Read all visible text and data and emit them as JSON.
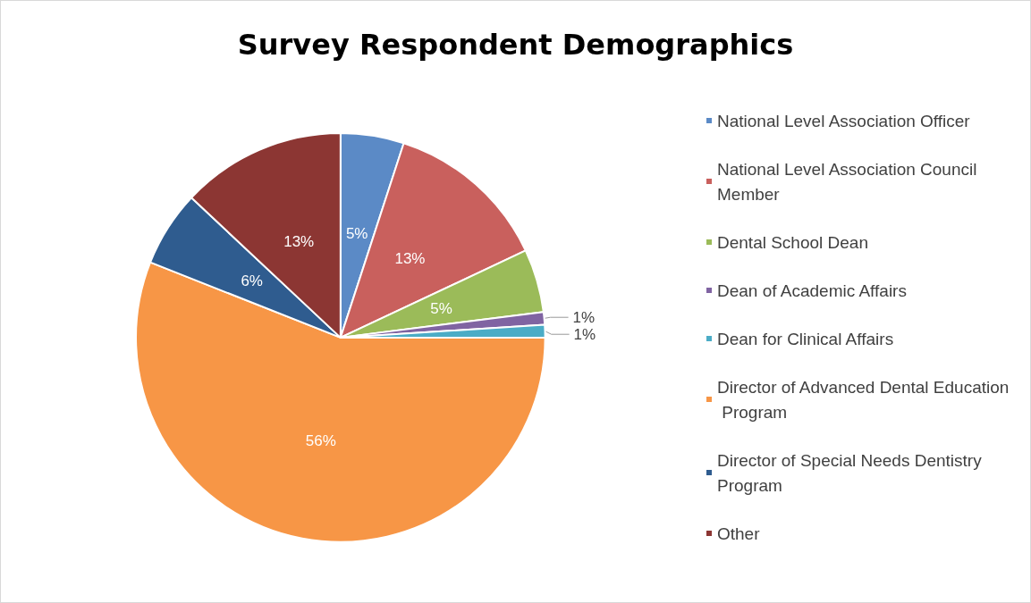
{
  "chart_data": {
    "type": "pie",
    "title": "Survey Respondent Demographics",
    "categories": [
      "National Level Association Officer",
      "National Level Association Council Member",
      "Dental School Dean",
      "Dean of Academic Affairs",
      "Dean for Clinical Affairs",
      "Director of Advanced Dental Education Program",
      "Director of Special Needs Dentistry Program",
      "Other"
    ],
    "values": [
      5,
      13,
      5,
      1,
      1,
      56,
      6,
      13
    ],
    "value_labels": [
      "5%",
      "13%",
      "5%",
      "1%",
      "1%",
      "56%",
      "6%",
      "13%"
    ],
    "colors": [
      "#5b8ac6",
      "#c9605d",
      "#9bbb59",
      "#8064a2",
      "#4bacc6",
      "#f79646",
      "#2f5c8f",
      "#8c3633"
    ],
    "legend": "right"
  }
}
